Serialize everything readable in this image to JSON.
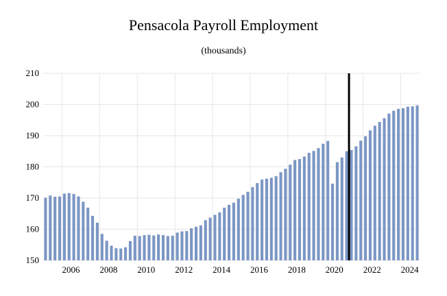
{
  "chart_data": {
    "type": "bar",
    "title": "Pensacola Payroll Employment",
    "subtitle": "(thousands)",
    "xlabel": "",
    "ylabel": "",
    "ylim": [
      150,
      210
    ],
    "y_ticks": [
      "150",
      "160",
      "170",
      "180",
      "190",
      "200",
      "210"
    ],
    "x_ticks": [
      "2006",
      "2008",
      "2010",
      "2012",
      "2014",
      "2016",
      "2018",
      "2020",
      "2022",
      "2024"
    ],
    "grid": true,
    "bar_color": "#7b96c4",
    "marker_color": "#000000",
    "marker_after_quarter": "2021 Q1",
    "quarters_start": "2005 Q1",
    "values": [
      170.1,
      170.8,
      170.4,
      170.5,
      171.4,
      171.6,
      171.3,
      170.5,
      168.8,
      166.9,
      164.3,
      162.1,
      158.5,
      156.3,
      154.7,
      153.9,
      153.8,
      154.2,
      156.2,
      157.9,
      157.8,
      158.1,
      158.2,
      158.0,
      158.3,
      158.1,
      157.8,
      157.9,
      158.9,
      159.3,
      159.4,
      160.3,
      160.8,
      161.2,
      162.9,
      163.7,
      164.6,
      165.4,
      166.9,
      167.8,
      168.5,
      169.8,
      171.0,
      172.0,
      173.5,
      174.8,
      175.9,
      176.2,
      176.5,
      177.0,
      178.3,
      179.4,
      180.7,
      182.2,
      182.5,
      183.3,
      184.5,
      185.1,
      186.0,
      187.4,
      188.3,
      174.6,
      181.5,
      183.0,
      185.0,
      185.4,
      186.6,
      188.4,
      189.8,
      191.7,
      193.2,
      194.4,
      195.6,
      197.1,
      198.0,
      198.6,
      198.8,
      199.3,
      199.4,
      199.7
    ]
  }
}
